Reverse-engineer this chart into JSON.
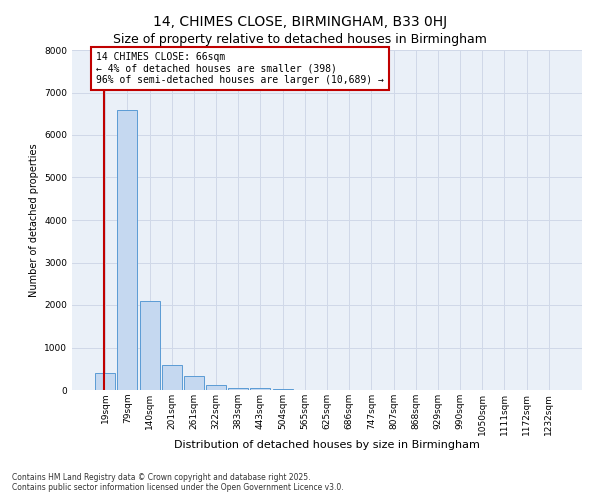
{
  "title": "14, CHIMES CLOSE, BIRMINGHAM, B33 0HJ",
  "subtitle": "Size of property relative to detached houses in Birmingham",
  "xlabel": "Distribution of detached houses by size in Birmingham",
  "ylabel": "Number of detached properties",
  "categories": [
    "19sqm",
    "79sqm",
    "140sqm",
    "201sqm",
    "261sqm",
    "322sqm",
    "383sqm",
    "443sqm",
    "504sqm",
    "565sqm",
    "625sqm",
    "686sqm",
    "747sqm",
    "807sqm",
    "868sqm",
    "929sqm",
    "990sqm",
    "1050sqm",
    "1111sqm",
    "1172sqm",
    "1232sqm"
  ],
  "values": [
    398,
    6600,
    2100,
    600,
    320,
    120,
    55,
    40,
    20,
    10,
    5,
    3,
    2,
    0,
    0,
    0,
    0,
    0,
    0,
    0,
    0
  ],
  "bar_color": "#c5d8f0",
  "bar_edge_color": "#5b9bd5",
  "highlight_line_color": "#c00000",
  "annotation_text": "14 CHIMES CLOSE: 66sqm\n← 4% of detached houses are smaller (398)\n96% of semi-detached houses are larger (10,689) →",
  "annotation_box_color": "#ffffff",
  "annotation_box_edge": "#c00000",
  "ylim": [
    0,
    8000
  ],
  "yticks": [
    0,
    1000,
    2000,
    3000,
    4000,
    5000,
    6000,
    7000,
    8000
  ],
  "grid_color": "#d0d8e8",
  "bg_color": "#eaf0f8",
  "footer_line1": "Contains HM Land Registry data © Crown copyright and database right 2025.",
  "footer_line2": "Contains public sector information licensed under the Open Government Licence v3.0.",
  "title_fontsize": 10,
  "subtitle_fontsize": 9,
  "annotation_fontsize": 7,
  "ylabel_fontsize": 7,
  "xlabel_fontsize": 8,
  "tick_fontsize": 6.5
}
